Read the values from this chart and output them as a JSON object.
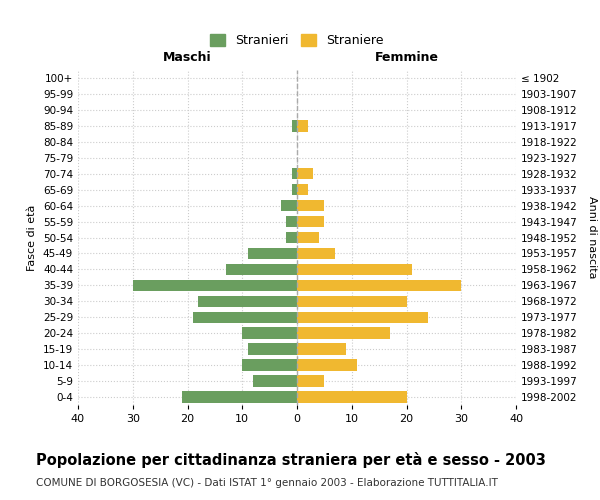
{
  "age_groups": [
    "0-4",
    "5-9",
    "10-14",
    "15-19",
    "20-24",
    "25-29",
    "30-34",
    "35-39",
    "40-44",
    "45-49",
    "50-54",
    "55-59",
    "60-64",
    "65-69",
    "70-74",
    "75-79",
    "80-84",
    "85-89",
    "90-94",
    "95-99",
    "100+"
  ],
  "birth_years": [
    "1998-2002",
    "1993-1997",
    "1988-1992",
    "1983-1987",
    "1978-1982",
    "1973-1977",
    "1968-1972",
    "1963-1967",
    "1958-1962",
    "1953-1957",
    "1948-1952",
    "1943-1947",
    "1938-1942",
    "1933-1937",
    "1928-1932",
    "1923-1927",
    "1918-1922",
    "1913-1917",
    "1908-1912",
    "1903-1907",
    "≤ 1902"
  ],
  "males": [
    21,
    8,
    10,
    9,
    10,
    19,
    18,
    30,
    13,
    9,
    2,
    2,
    3,
    1,
    1,
    0,
    0,
    1,
    0,
    0,
    0
  ],
  "females": [
    20,
    5,
    11,
    9,
    17,
    24,
    20,
    30,
    21,
    7,
    4,
    5,
    5,
    2,
    3,
    0,
    0,
    2,
    0,
    0,
    0
  ],
  "male_color": "#6a9e5f",
  "female_color": "#f0b830",
  "grid_color": "#cccccc",
  "dashed_line_color": "#aaaaaa",
  "xlim": 40,
  "xlabel_left": "Maschi",
  "xlabel_right": "Femmine",
  "ylabel_left": "Fasce di età",
  "ylabel_right": "Anni di nascita",
  "legend_male": "Stranieri",
  "legend_female": "Straniere",
  "title": "Popolazione per cittadinanza straniera per età e sesso - 2003",
  "subtitle": "COMUNE DI BORGOSESIA (VC) - Dati ISTAT 1° gennaio 2003 - Elaborazione TUTTITALIA.IT",
  "title_fontsize": 10.5,
  "subtitle_fontsize": 7.5
}
